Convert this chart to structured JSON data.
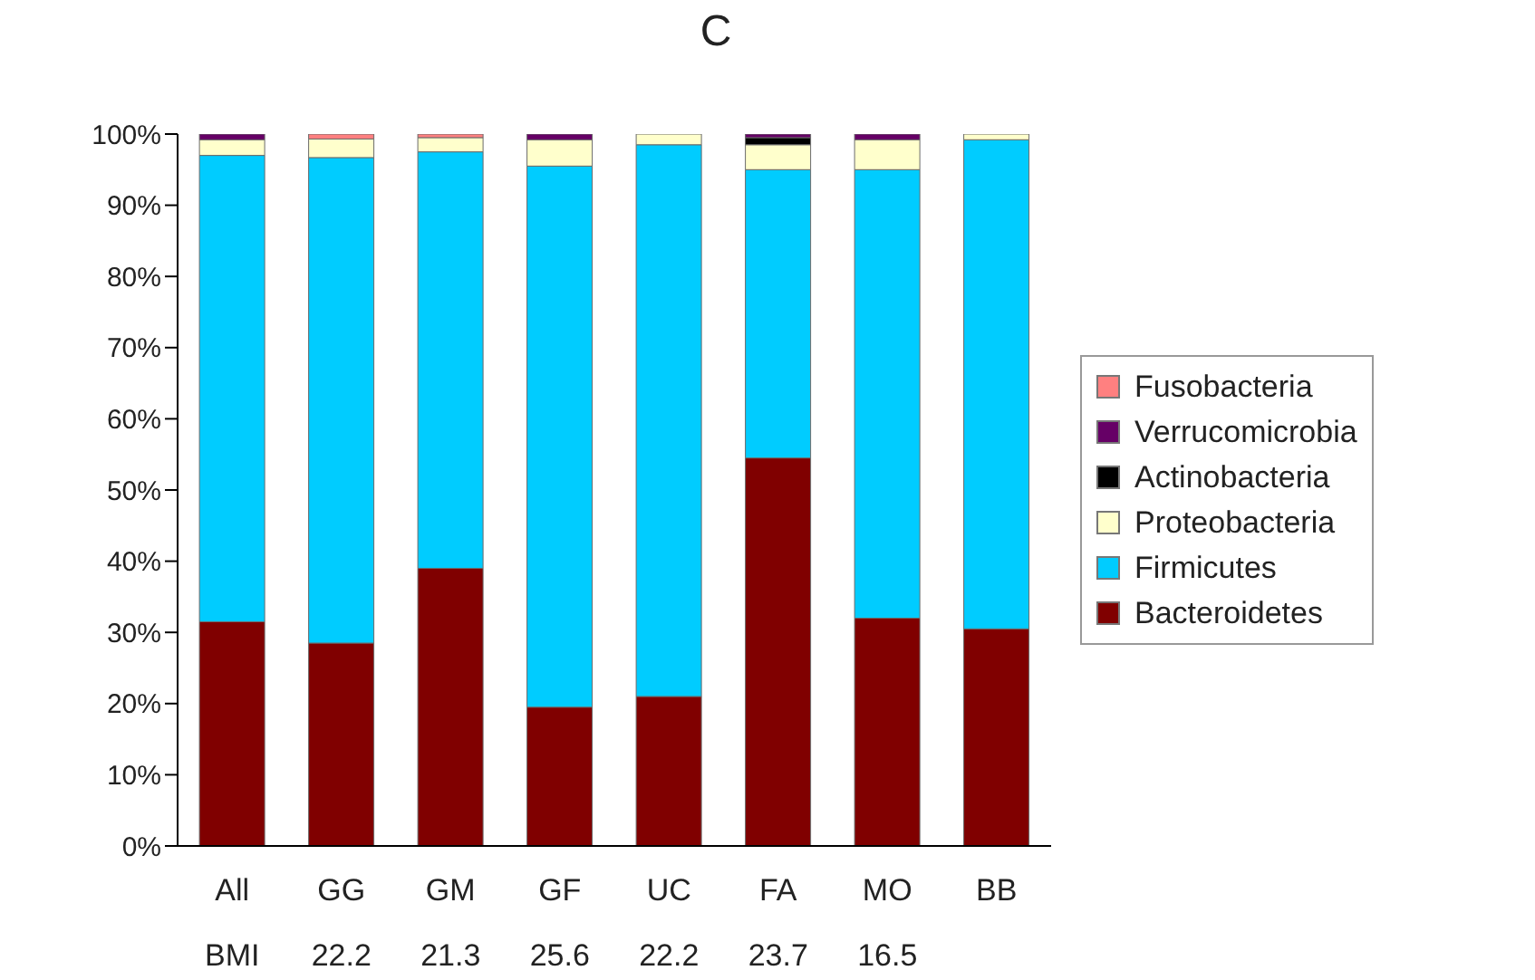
{
  "chart_data": {
    "type": "bar",
    "title": "C",
    "stacked": true,
    "categories": [
      "All",
      "GG",
      "GM",
      "GF",
      "UC",
      "FA",
      "MO",
      "BB"
    ],
    "series": [
      {
        "name": "Bacteroidetes",
        "color": "#800000",
        "values": [
          31.5,
          28.5,
          39,
          19.5,
          21,
          54.5,
          32,
          30.5
        ]
      },
      {
        "name": "Firmicutes",
        "color": "#00ccff",
        "values": [
          65.5,
          68.2,
          58.5,
          76,
          77.5,
          40.5,
          63,
          68.7
        ]
      },
      {
        "name": "Proteobacteria",
        "color": "#ffffcc",
        "values": [
          2.2,
          2.6,
          2,
          3.7,
          1.5,
          3.5,
          4.2,
          0.8
        ]
      },
      {
        "name": "Actinobacteria",
        "color": "#000000",
        "values": [
          0,
          0,
          0,
          0,
          0,
          1,
          0,
          0
        ]
      },
      {
        "name": "Verrucomicrobia",
        "color": "#660066",
        "values": [
          0.8,
          0,
          0,
          0.8,
          0,
          0.5,
          0.8,
          0
        ]
      },
      {
        "name": "Fusobacteria",
        "color": "#ff8080",
        "values": [
          0,
          0.7,
          0.5,
          0,
          0,
          0,
          0,
          0
        ]
      }
    ],
    "ylim": [
      0,
      100
    ],
    "yticks": [
      {
        "value": 0,
        "label": "0%"
      },
      {
        "value": 10,
        "label": "10%"
      },
      {
        "value": 20,
        "label": "20%"
      },
      {
        "value": 30,
        "label": "30%"
      },
      {
        "value": 40,
        "label": "40%"
      },
      {
        "value": 50,
        "label": "50%"
      },
      {
        "value": 60,
        "label": "60%"
      },
      {
        "value": 70,
        "label": "70%"
      },
      {
        "value": 80,
        "label": "80%"
      },
      {
        "value": 90,
        "label": "90%"
      },
      {
        "value": 100,
        "label": "100%"
      }
    ],
    "grid": false,
    "legend": "right",
    "annotations": [
      "BMI",
      "22.2",
      "21.3",
      "25.6",
      "22.2",
      "23.7",
      "16.5"
    ]
  }
}
